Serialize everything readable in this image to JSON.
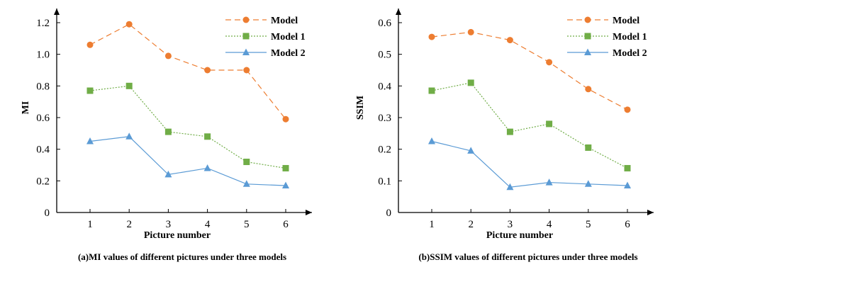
{
  "chart_data": [
    {
      "type": "line",
      "caption": "(a)MI values of different pictures under three models",
      "xlabel": "Picture number",
      "ylabel": "MI",
      "x": [
        1,
        2,
        3,
        4,
        5,
        6
      ],
      "xticks": [
        "1",
        "2",
        "3",
        "4",
        "5",
        "6"
      ],
      "yticks": [
        "0",
        "0.2",
        "0.4",
        "0.6",
        "0.8",
        "1.0",
        "1.2"
      ],
      "ylim": [
        0,
        1.3
      ],
      "grid": false,
      "legend_position": "top-right",
      "series": [
        {
          "name": "Model",
          "values": [
            1.06,
            1.19,
            0.99,
            0.9,
            0.9,
            0.59
          ],
          "color": "#ED7D31",
          "marker": "circle",
          "line": "dashed"
        },
        {
          "name": "Model 1",
          "values": [
            0.77,
            0.8,
            0.51,
            0.48,
            0.32,
            0.28
          ],
          "color": "#70AD47",
          "marker": "square",
          "line": "dotted"
        },
        {
          "name": "Model 2",
          "values": [
            0.45,
            0.48,
            0.24,
            0.28,
            0.18,
            0.17
          ],
          "color": "#5B9BD5",
          "marker": "triangle",
          "line": "solid"
        }
      ]
    },
    {
      "type": "line",
      "caption": "(b)SSIM values of different pictures under three models",
      "xlabel": "Picture number",
      "ylabel": "SSIM",
      "x": [
        1,
        2,
        3,
        4,
        5,
        6
      ],
      "xticks": [
        "1",
        "2",
        "3",
        "4",
        "5",
        "6"
      ],
      "yticks": [
        "0",
        "0.1",
        "0.2",
        "0.3",
        "0.4",
        "0.5",
        "0.6"
      ],
      "ylim": [
        0,
        0.65
      ],
      "grid": false,
      "legend_position": "top-right",
      "series": [
        {
          "name": "Model",
          "values": [
            0.555,
            0.57,
            0.545,
            0.475,
            0.39,
            0.325
          ],
          "color": "#ED7D31",
          "marker": "circle",
          "line": "dashed"
        },
        {
          "name": "Model 1",
          "values": [
            0.385,
            0.41,
            0.255,
            0.28,
            0.205,
            0.14
          ],
          "color": "#70AD47",
          "marker": "square",
          "line": "dotted"
        },
        {
          "name": "Model 2",
          "values": [
            0.225,
            0.195,
            0.08,
            0.095,
            0.09,
            0.085
          ],
          "color": "#5B9BD5",
          "marker": "triangle",
          "line": "solid"
        }
      ]
    }
  ]
}
